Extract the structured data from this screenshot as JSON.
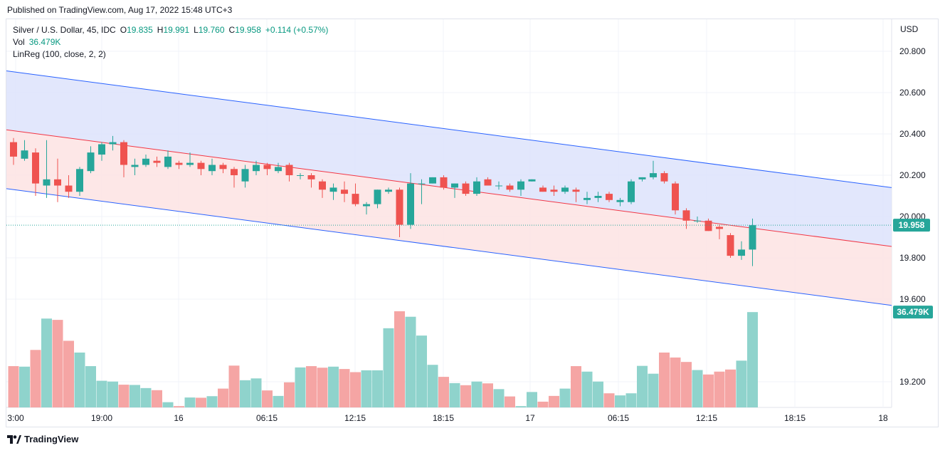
{
  "header": {
    "published": "Published on TradingView.com, Aug 17, 2022 15:48 UTC+3"
  },
  "legend": {
    "symbol": "Silver / U.S. Dollar, 45, IDC",
    "open_label": "O",
    "open": "19.835",
    "high_label": "H",
    "high": "19.991",
    "low_label": "L",
    "low": "19.760",
    "close_label": "C",
    "close": "19.958",
    "change": "+0.114 (+0.57%)",
    "vol_label": "Vol",
    "vol_value": "36.479K",
    "linreg_label": "LinReg (100, close, 2, 2)"
  },
  "footer": {
    "brand": "TradingView",
    "logo_icon": "tradingview-logo-icon"
  },
  "colors": {
    "up": "#26a69a",
    "down": "#ef5350",
    "vol_up": "#8fd3cc",
    "vol_down": "#f5a5a4",
    "upper_band": "#dde3fc",
    "lower_band": "#fde3e3",
    "band_line": "#2962ff",
    "mid_line": "#f23645"
  },
  "chart_data": {
    "type": "candlestick",
    "currency_label": "USD",
    "price_ticks": [
      "20.800",
      "20.600",
      "20.400",
      "20.200",
      "20.000",
      "19.800",
      "19.600",
      "19.200"
    ],
    "x_tick_labels": [
      "3:00",
      "19:00",
      "16",
      "06:15",
      "12:15",
      "18:15",
      "17",
      "06:15",
      "12:15",
      "18:15",
      "18"
    ],
    "last_price_badge": "19.958",
    "volume_badge": "36.479K",
    "linreg": {
      "upper": {
        "start": 20.705,
        "end": 20.14
      },
      "mid": {
        "start": 20.42,
        "end": 19.855
      },
      "lower": {
        "start": 20.135,
        "end": 19.57
      }
    },
    "ohlc": [
      [
        20.36,
        20.38,
        20.25,
        20.29
      ],
      [
        20.28,
        20.37,
        20.27,
        20.32
      ],
      [
        20.31,
        20.33,
        20.1,
        20.16
      ],
      [
        20.15,
        20.37,
        20.09,
        20.18
      ],
      [
        20.18,
        20.28,
        20.07,
        20.15
      ],
      [
        20.15,
        20.2,
        20.09,
        20.12
      ],
      [
        20.12,
        20.24,
        20.1,
        20.23
      ],
      [
        20.22,
        20.34,
        20.21,
        20.31
      ],
      [
        20.3,
        20.36,
        20.27,
        20.35
      ],
      [
        20.35,
        20.39,
        20.32,
        20.36
      ],
      [
        20.36,
        20.37,
        20.19,
        20.25
      ],
      [
        20.24,
        20.28,
        20.2,
        20.25
      ],
      [
        20.25,
        20.3,
        20.24,
        20.28
      ],
      [
        20.27,
        20.29,
        20.24,
        20.26
      ],
      [
        20.24,
        20.32,
        20.23,
        20.29
      ],
      [
        20.26,
        20.27,
        20.23,
        20.25
      ],
      [
        20.25,
        20.31,
        20.24,
        20.26
      ],
      [
        20.26,
        20.27,
        20.2,
        20.23
      ],
      [
        20.22,
        20.28,
        20.2,
        20.25
      ],
      [
        20.25,
        20.26,
        20.21,
        20.23
      ],
      [
        20.23,
        20.24,
        20.14,
        20.2
      ],
      [
        20.17,
        20.25,
        20.14,
        20.23
      ],
      [
        20.22,
        20.27,
        20.2,
        20.25
      ],
      [
        20.25,
        20.26,
        20.2,
        20.23
      ],
      [
        20.22,
        20.26,
        20.21,
        20.24
      ],
      [
        20.25,
        20.26,
        20.17,
        20.2
      ],
      [
        20.2,
        20.21,
        20.18,
        20.2
      ],
      [
        20.2,
        20.21,
        20.14,
        20.18
      ],
      [
        20.17,
        20.18,
        20.09,
        20.13
      ],
      [
        20.12,
        20.16,
        20.08,
        20.14
      ],
      [
        20.13,
        20.17,
        20.07,
        20.11
      ],
      [
        20.11,
        20.16,
        20.05,
        20.06
      ],
      [
        20.05,
        20.07,
        20.01,
        20.06
      ],
      [
        20.06,
        20.13,
        20.04,
        20.13
      ],
      [
        20.12,
        20.14,
        20.11,
        20.13
      ],
      [
        20.13,
        20.14,
        19.9,
        19.96
      ],
      [
        19.96,
        20.21,
        19.94,
        20.16
      ],
      [
        20.16,
        20.18,
        20.06,
        20.16
      ],
      [
        20.16,
        20.19,
        20.16,
        20.19
      ],
      [
        20.19,
        20.2,
        20.13,
        20.14
      ],
      [
        20.14,
        20.16,
        20.09,
        20.16
      ],
      [
        20.16,
        20.17,
        20.1,
        20.11
      ],
      [
        20.11,
        20.19,
        20.1,
        20.17
      ],
      [
        20.18,
        20.19,
        20.15,
        20.15
      ],
      [
        20.15,
        20.17,
        20.13,
        20.15
      ],
      [
        20.15,
        20.16,
        20.12,
        20.13
      ],
      [
        20.13,
        20.18,
        20.1,
        20.17
      ],
      [
        20.17,
        20.18,
        20.17,
        20.18
      ],
      [
        20.14,
        20.15,
        20.12,
        20.12
      ],
      [
        20.13,
        20.15,
        20.1,
        20.12
      ],
      [
        20.12,
        20.15,
        20.11,
        20.14
      ],
      [
        20.13,
        20.14,
        20.07,
        20.12
      ],
      [
        20.08,
        20.12,
        20.06,
        20.09
      ],
      [
        20.09,
        20.12,
        20.07,
        20.1
      ],
      [
        20.11,
        20.12,
        20.07,
        20.08
      ],
      [
        20.07,
        20.09,
        20.05,
        20.08
      ],
      [
        20.07,
        20.18,
        20.06,
        20.17
      ],
      [
        20.18,
        20.19,
        20.17,
        20.19
      ],
      [
        20.19,
        20.27,
        20.18,
        20.21
      ],
      [
        20.21,
        20.22,
        20.16,
        20.17
      ],
      [
        20.16,
        20.17,
        20.01,
        20.03
      ],
      [
        20.03,
        20.04,
        19.94,
        19.98
      ],
      [
        19.98,
        20.0,
        19.97,
        19.98
      ],
      [
        19.98,
        19.99,
        19.93,
        19.93
      ],
      [
        19.95,
        19.96,
        19.89,
        19.94
      ],
      [
        19.91,
        19.92,
        19.8,
        19.81
      ],
      [
        19.81,
        19.88,
        19.79,
        19.84
      ],
      [
        19.84,
        19.99,
        19.76,
        19.958
      ]
    ],
    "volume_k": [
      15.8,
      15.6,
      22.0,
      34.0,
      33.5,
      25.5,
      21.0,
      15.8,
      10.2,
      9.9,
      8.7,
      8.6,
      7.4,
      6.6,
      2.0,
      0.5,
      3.8,
      3.7,
      4.3,
      7.2,
      16.0,
      10.4,
      11.1,
      6.5,
      4.4,
      9.6,
      15.3,
      15.8,
      15.2,
      15.6,
      14.7,
      13.5,
      14.2,
      14.2,
      30.3,
      36.8,
      34.7,
      27.5,
      16.3,
      11.7,
      9.3,
      8.5,
      9.9,
      9.2,
      7.0,
      4.2,
      0.5,
      5.9,
      2.2,
      4.4,
      7.2,
      15.8,
      13.7,
      9.9,
      5.4,
      4.6,
      5.4,
      15.9,
      12.9,
      21.0,
      19.1,
      17.4,
      14.3,
      12.6,
      13.7,
      14.5,
      17.9,
      36.479
    ]
  }
}
